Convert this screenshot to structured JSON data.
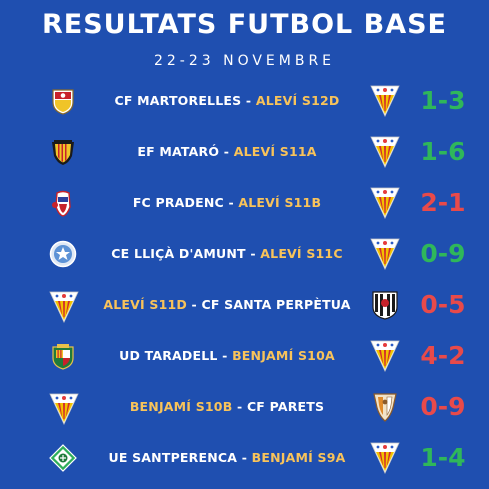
{
  "header": {
    "title": "RESULTATS FUTBOL BASE",
    "date": "22-23 NOVEMBRE"
  },
  "colors": {
    "background": "#1f4fb0",
    "win": "#2fb75a",
    "loss": "#e84a4a",
    "own_team": "#f8c35a"
  },
  "matches": [
    {
      "left_team": "CF MARTORELLES",
      "separator": " - ",
      "right_team": "ALEVÍ S12D",
      "score": "1-3",
      "result": "win",
      "left_logo": "martorelles-crest-icon",
      "right_logo": "club-pennant-icon"
    },
    {
      "left_team": "EF MATARÓ",
      "separator": " - ",
      "right_team": "ALEVÍ S11A",
      "score": "1-6",
      "result": "win",
      "left_logo": "mataro-crest-icon",
      "right_logo": "club-pennant-icon"
    },
    {
      "left_team": "FC PRADENC",
      "separator": " - ",
      "right_team": "ALEVÍ S11B",
      "score": "2-1",
      "result": "loss",
      "left_logo": "pradenc-crest-icon",
      "right_logo": "club-pennant-icon"
    },
    {
      "left_team": "CE LLIÇÀ D'AMUNT",
      "separator": " - ",
      "right_team": "ALEVÍ S11C",
      "score": "0-9",
      "result": "win",
      "left_logo": "llica-crest-icon",
      "right_logo": "club-pennant-icon"
    },
    {
      "left_team": "ALEVÍ S11D",
      "separator": " - ",
      "right_team": "CF SANTA PERPÈTUA",
      "score": "0-5",
      "result": "loss",
      "left_logo": "club-pennant-icon",
      "right_logo": "santa-perpetua-crest-icon"
    },
    {
      "left_team": "UD TARADELL",
      "separator": " - ",
      "right_team": "BENJAMÍ S10A",
      "score": "4-2",
      "result": "loss",
      "left_logo": "taradell-crest-icon",
      "right_logo": "club-pennant-icon"
    },
    {
      "left_team": "BENJAMÍ S10B",
      "separator": " - ",
      "right_team": "CF PARETS",
      "score": "0-9",
      "result": "loss",
      "left_logo": "club-pennant-icon",
      "right_logo": "parets-crest-icon"
    },
    {
      "left_team": "UE SANTPERENCA",
      "separator": " - ",
      "right_team": "BENJAMÍ S9A",
      "score": "1-4",
      "result": "win",
      "left_logo": "santperenca-crest-icon",
      "right_logo": "club-pennant-icon"
    }
  ]
}
